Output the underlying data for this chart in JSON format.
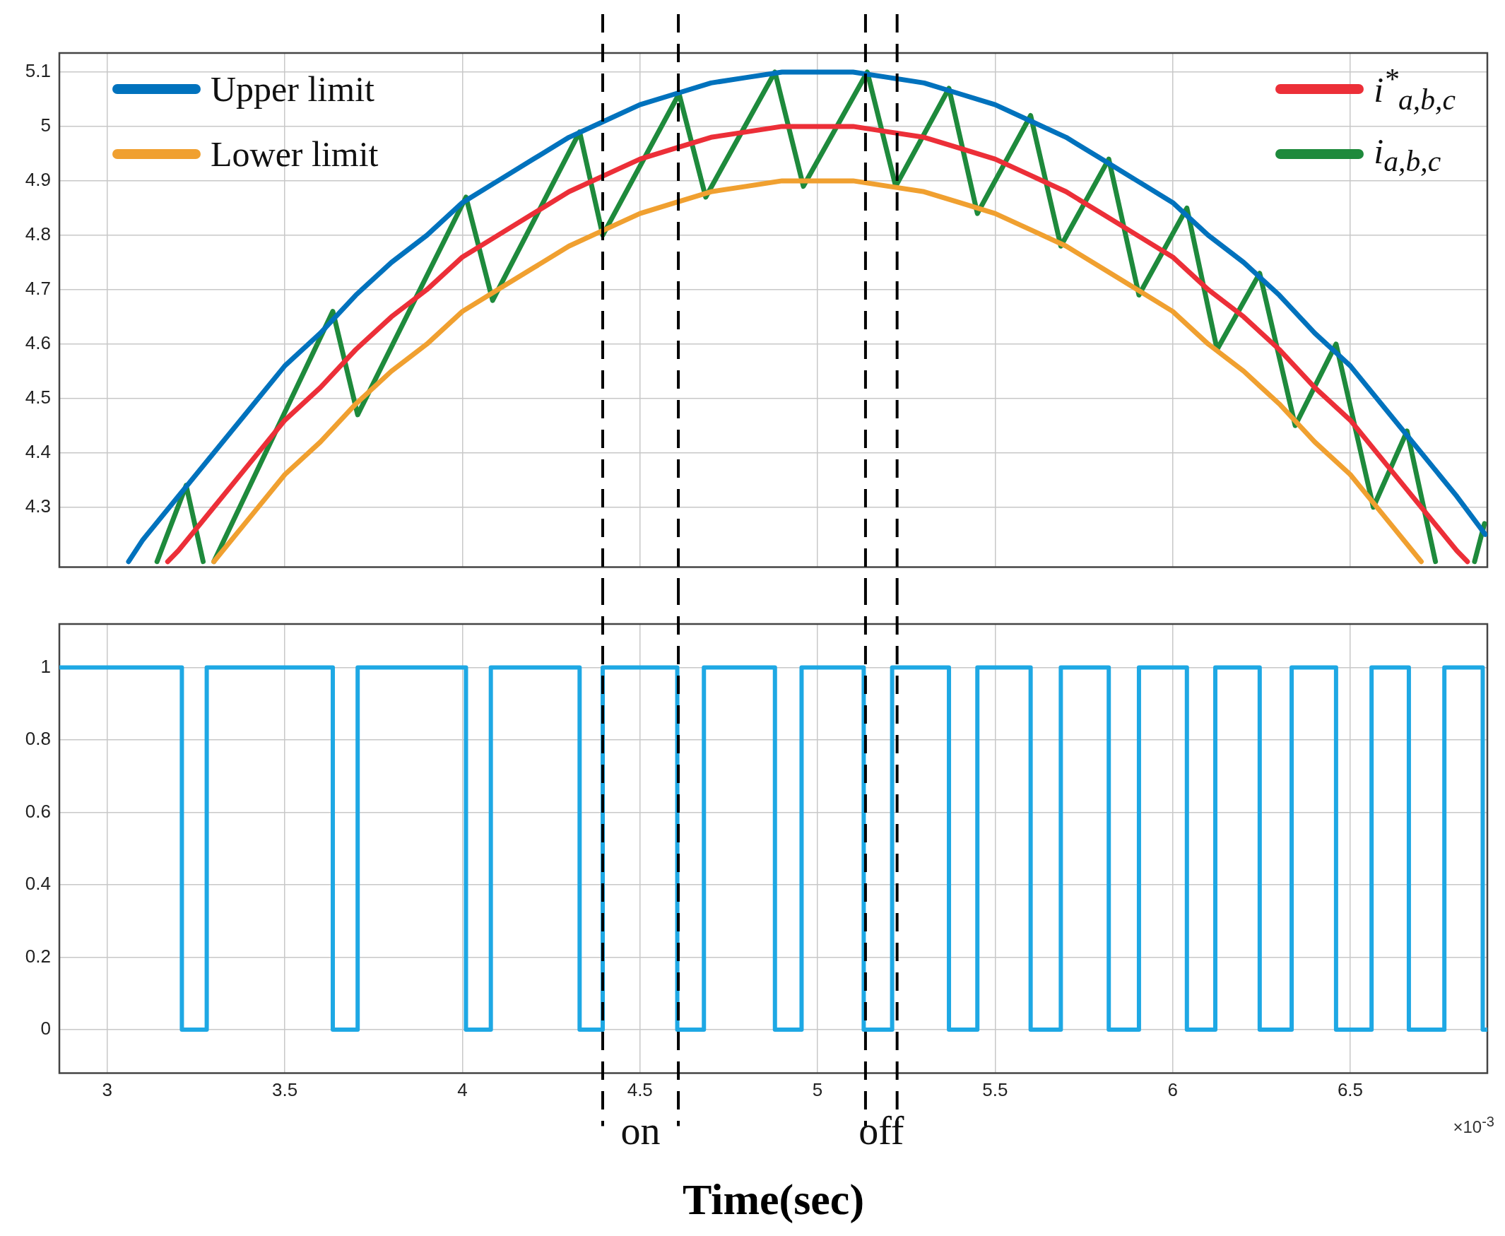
{
  "chart_data": [
    {
      "type": "line",
      "xlim": [
        2.865,
        6.886
      ],
      "ylim": [
        4.19,
        5.135
      ],
      "xticks": [
        3,
        3.5,
        4,
        4.5,
        5,
        5.5,
        6,
        6.5
      ],
      "yticks": [
        4.3,
        4.4,
        4.5,
        4.6,
        4.7,
        4.8,
        4.9,
        5,
        5.1
      ],
      "tick_labels": "y",
      "grid": true,
      "legend": "top",
      "marker": "none",
      "line_style": "solid",
      "series": [
        {
          "name": "Upper limit",
          "color": "#0072bd",
          "x": [
            3.06,
            3.1,
            3.2,
            3.3,
            3.4,
            3.5,
            3.6,
            3.7,
            3.8,
            3.9,
            4.0,
            4.1,
            4.2,
            4.3,
            4.4,
            4.5,
            4.6,
            4.7,
            4.8,
            4.9,
            5.0,
            5.1,
            5.2,
            5.3,
            5.4,
            5.5,
            5.6,
            5.7,
            5.8,
            5.9,
            6.0,
            6.1,
            6.2,
            6.3,
            6.4,
            6.5,
            6.6,
            6.7,
            6.8,
            6.88
          ],
          "values": [
            4.2,
            4.24,
            4.32,
            4.4,
            4.48,
            4.56,
            4.62,
            4.69,
            4.75,
            4.8,
            4.86,
            4.9,
            4.94,
            4.98,
            5.01,
            5.04,
            5.06,
            5.08,
            5.09,
            5.1,
            5.1,
            5.1,
            5.09,
            5.08,
            5.06,
            5.04,
            5.01,
            4.98,
            4.94,
            4.9,
            4.86,
            4.8,
            4.75,
            4.69,
            4.62,
            4.56,
            4.48,
            4.4,
            4.32,
            4.25
          ]
        },
        {
          "name": "Lower limit",
          "color": "#f0a030",
          "x": [
            3.3,
            3.4,
            3.5,
            3.6,
            3.7,
            3.8,
            3.9,
            4.0,
            4.1,
            4.2,
            4.3,
            4.4,
            4.5,
            4.6,
            4.7,
            4.8,
            4.9,
            5.0,
            5.1,
            5.2,
            5.3,
            5.4,
            5.5,
            5.6,
            5.7,
            5.8,
            5.9,
            6.0,
            6.1,
            6.2,
            6.3,
            6.4,
            6.5,
            6.6,
            6.7
          ],
          "values": [
            4.2,
            4.28,
            4.36,
            4.42,
            4.49,
            4.55,
            4.6,
            4.66,
            4.7,
            4.74,
            4.78,
            4.81,
            4.84,
            4.86,
            4.88,
            4.89,
            4.9,
            4.9,
            4.9,
            4.89,
            4.88,
            4.86,
            4.84,
            4.81,
            4.78,
            4.74,
            4.7,
            4.66,
            4.6,
            4.55,
            4.49,
            4.42,
            4.36,
            4.28,
            4.2
          ]
        },
        {
          "name": "i$^{*}$$_{a,b,c}$",
          "color": "#ec2f38",
          "x": [
            3.17,
            3.2,
            3.3,
            3.4,
            3.5,
            3.6,
            3.7,
            3.8,
            3.9,
            4.0,
            4.1,
            4.2,
            4.3,
            4.4,
            4.5,
            4.6,
            4.7,
            4.8,
            4.9,
            5.0,
            5.1,
            5.2,
            5.3,
            5.4,
            5.5,
            5.6,
            5.7,
            5.8,
            5.9,
            6.0,
            6.1,
            6.2,
            6.3,
            6.4,
            6.5,
            6.6,
            6.7,
            6.8,
            6.83
          ],
          "values": [
            4.2,
            4.22,
            4.3,
            4.38,
            4.46,
            4.52,
            4.59,
            4.65,
            4.7,
            4.76,
            4.8,
            4.84,
            4.88,
            4.91,
            4.94,
            4.96,
            4.98,
            4.99,
            5.0,
            5.0,
            5.0,
            4.99,
            4.98,
            4.96,
            4.94,
            4.91,
            4.88,
            4.84,
            4.8,
            4.76,
            4.7,
            4.65,
            4.59,
            4.52,
            4.46,
            4.38,
            4.3,
            4.22,
            4.2
          ]
        },
        {
          "name": "i$_{a,b,c}$",
          "color": "#1e8a3c",
          "x": [
            3.14,
            3.222,
            3.27,
            3.285,
            3.3,
            3.635,
            3.705,
            4.01,
            4.085,
            4.33,
            4.395,
            4.61,
            4.685,
            4.88,
            4.96,
            5.14,
            5.22,
            5.37,
            5.45,
            5.6,
            5.685,
            5.82,
            5.905,
            6.04,
            6.125,
            6.245,
            6.345,
            6.46,
            6.565,
            6.66,
            6.74,
            6.79,
            6.85,
            6.878
          ],
          "values": [
            4.2,
            4.34,
            4.2,
            null,
            4.2,
            4.66,
            4.47,
            4.87,
            4.68,
            4.99,
            4.8,
            5.06,
            4.87,
            5.1,
            4.89,
            5.1,
            4.89,
            5.07,
            4.84,
            5.02,
            4.78,
            4.94,
            4.69,
            4.85,
            4.59,
            4.73,
            4.45,
            4.6,
            4.3,
            4.44,
            4.2,
            null,
            4.2,
            4.27
          ]
        }
      ],
      "ref_lines": [
        {
          "axis": "x",
          "value": 4.395,
          "color": "#000000",
          "line_style": "dashed"
        },
        {
          "axis": "x",
          "value": 4.608,
          "color": "#000000",
          "line_style": "dashed"
        },
        {
          "axis": "x",
          "value": 5.135,
          "color": "#000000",
          "line_style": "dashed"
        },
        {
          "axis": "x",
          "value": 5.224,
          "color": "#000000",
          "line_style": "dashed"
        }
      ]
    },
    {
      "type": "step",
      "xlabel": "Time(sec)",
      "xlim": [
        2.865,
        6.886
      ],
      "ylim": [
        -0.12,
        1.12
      ],
      "xticks": [
        3,
        3.5,
        4,
        4.5,
        5,
        5.5,
        6,
        6.5
      ],
      "yticks": [
        0,
        0.2,
        0.4,
        0.6,
        0.8,
        1
      ],
      "grid": true,
      "marker": "none",
      "line_style": "solid",
      "series": [
        {
          "color": "#1ea8e4",
          "x": [
            2.865,
            3.21,
            3.28,
            3.635,
            3.705,
            4.01,
            4.08,
            4.33,
            4.395,
            4.605,
            4.68,
            4.88,
            4.955,
            5.13,
            5.21,
            5.37,
            5.45,
            5.6,
            5.685,
            5.82,
            5.905,
            6.04,
            6.12,
            6.245,
            6.335,
            6.46,
            6.56,
            6.665,
            6.765,
            6.873,
            6.886
          ],
          "values": [
            1,
            0,
            1,
            0,
            1,
            0,
            1,
            0,
            1,
            0,
            1,
            0,
            1,
            0,
            1,
            0,
            1,
            0,
            1,
            0,
            1,
            0,
            1,
            0,
            1,
            0,
            1,
            0,
            1,
            0,
            0
          ]
        }
      ],
      "ref_lines": [
        {
          "axis": "x",
          "value": 4.395,
          "color": "#000000",
          "line_style": "dashed"
        },
        {
          "axis": "x",
          "value": 4.608,
          "color": "#000000",
          "line_style": "dashed"
        },
        {
          "axis": "x",
          "value": 5.135,
          "color": "#000000",
          "line_style": "dashed"
        },
        {
          "axis": "x",
          "value": 5.224,
          "color": "#000000",
          "line_style": "dashed"
        }
      ],
      "annotations": [
        "on",
        "off",
        "×10$^{-3}$"
      ]
    }
  ]
}
